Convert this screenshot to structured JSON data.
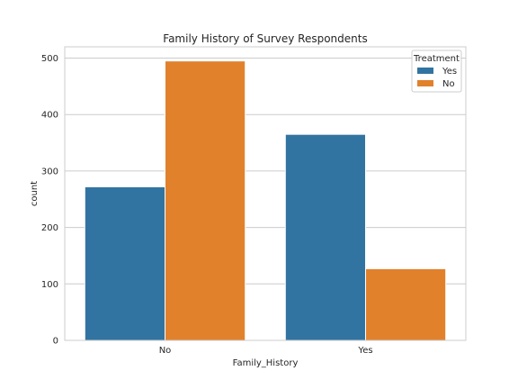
{
  "chart_data": {
    "type": "bar",
    "title": "Family History of Survey Respondents",
    "xlabel": "Family_History",
    "ylabel": "count",
    "categories": [
      "No",
      "Yes"
    ],
    "series": [
      {
        "name": "Yes",
        "values": [
          272,
          365
        ],
        "color": "#3274a1"
      },
      {
        "name": "No",
        "values": [
          495,
          127
        ],
        "color": "#e1812c"
      }
    ],
    "ylim": [
      0,
      520
    ],
    "yticks": [
      0,
      100,
      200,
      300,
      400,
      500
    ],
    "legend": {
      "title": "Treatment",
      "placement": "top-right"
    },
    "grid": true,
    "style": {
      "grid_color": "#cccccc",
      "frame_color": "#cccccc",
      "text_color": "#262626"
    }
  }
}
